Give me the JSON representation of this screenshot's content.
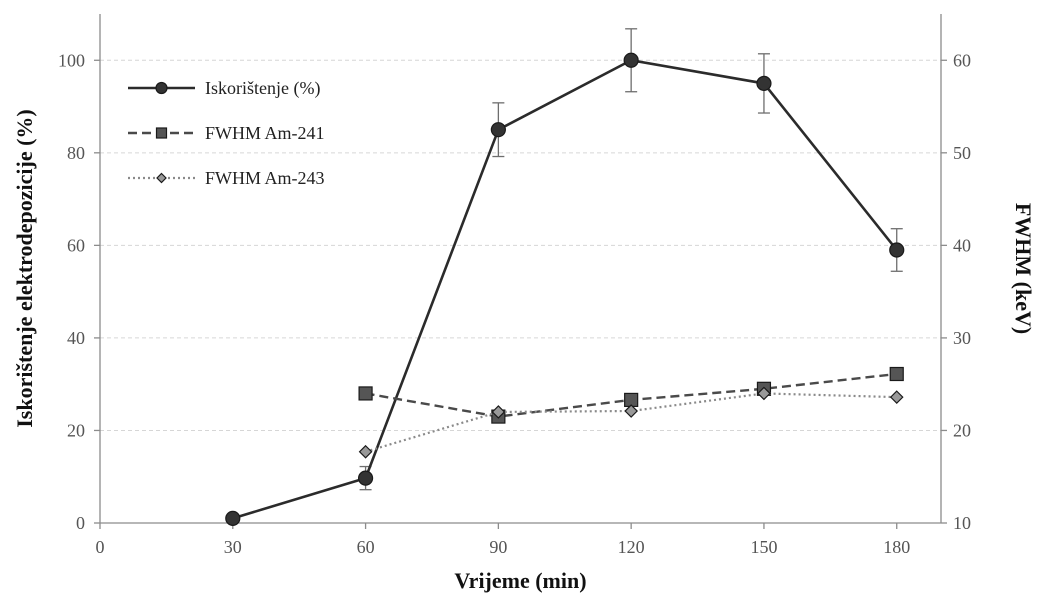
{
  "chart_data": {
    "type": "line",
    "x_axis": {
      "label": "Vrijeme (min)",
      "range": [
        0,
        190
      ],
      "ticks": [
        0,
        30,
        60,
        90,
        120,
        150,
        180
      ]
    },
    "y_axis_left": {
      "label": "Iskorištenje elektrodepozicije (%)",
      "range": [
        0,
        110
      ],
      "ticks": [
        0,
        20,
        40,
        60,
        80,
        100
      ]
    },
    "y_axis_right": {
      "label": "FWHM (keV)",
      "range": [
        10,
        65
      ],
      "ticks": [
        10,
        20,
        30,
        40,
        50,
        60
      ]
    },
    "grid": "horizontal",
    "legend_position": "top-left",
    "series": [
      {
        "name": "Iskorištenje (%)",
        "axis": "left",
        "line_style": "solid",
        "marker": "circle",
        "color": "#2b2b2b",
        "marker_fill": "#333333",
        "x": [
          30,
          60,
          90,
          120,
          150,
          180
        ],
        "y": [
          1,
          9.7,
          85,
          100,
          95,
          59
        ],
        "error": [
          0,
          2.5,
          5.8,
          6.8,
          6.4,
          4.6
        ]
      },
      {
        "name": "FWHM Am-241",
        "axis": "right",
        "line_style": "dashed",
        "marker": "square",
        "color": "#4a4a4a",
        "marker_fill": "#555555",
        "x": [
          60,
          90,
          120,
          150,
          180
        ],
        "y": [
          24,
          21.5,
          23.3,
          24.5,
          26.1
        ]
      },
      {
        "name": "FWHM Am-243",
        "axis": "right",
        "line_style": "dotted",
        "marker": "diamond",
        "color": "#8a8a8a",
        "marker_fill": "#999999",
        "x": [
          60,
          90,
          120,
          150,
          180
        ],
        "y": [
          17.7,
          22,
          22.1,
          24,
          23.6
        ]
      }
    ]
  }
}
